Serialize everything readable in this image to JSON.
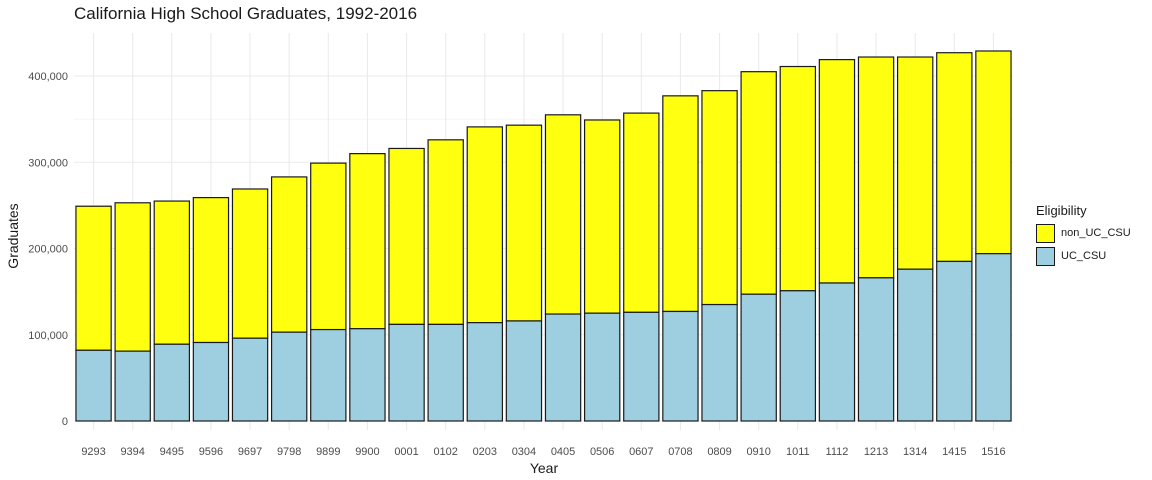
{
  "chart_data": {
    "type": "bar",
    "stacked": true,
    "title": "California High School Graduates, 1992-2016",
    "xlabel": "Year",
    "ylabel": "Graduates",
    "categories": [
      "9293",
      "9394",
      "9495",
      "9596",
      "9697",
      "9798",
      "9899",
      "9900",
      "0001",
      "0102",
      "0203",
      "0304",
      "0405",
      "0506",
      "0607",
      "0708",
      "0809",
      "0910",
      "1011",
      "1112",
      "1213",
      "1314",
      "1415",
      "1516"
    ],
    "ylim": [
      0,
      450000
    ],
    "yticks": [
      0,
      100000,
      200000,
      300000,
      400000
    ],
    "ytick_labels": [
      "0",
      "100,000",
      "200,000",
      "300,000",
      "400,000"
    ],
    "grid": true,
    "legend": {
      "title": "Eligibility",
      "position": "right"
    },
    "series": [
      {
        "name": "UC_CSU",
        "color": "#9ecfe0",
        "values": [
          82000,
          81000,
          89000,
          91000,
          96000,
          103000,
          106000,
          107000,
          112000,
          112000,
          114000,
          116000,
          124000,
          125000,
          126000,
          127000,
          135000,
          147000,
          151000,
          160000,
          166000,
          176000,
          185000,
          194000
        ]
      },
      {
        "name": "non_UC_CSU",
        "color": "#ffff10",
        "values": [
          167000,
          172000,
          166000,
          168000,
          173000,
          180000,
          193000,
          203000,
          204000,
          214000,
          227000,
          227000,
          231000,
          224000,
          231000,
          250000,
          248000,
          258000,
          260000,
          259000,
          256000,
          246000,
          242000,
          235000
        ]
      }
    ]
  }
}
